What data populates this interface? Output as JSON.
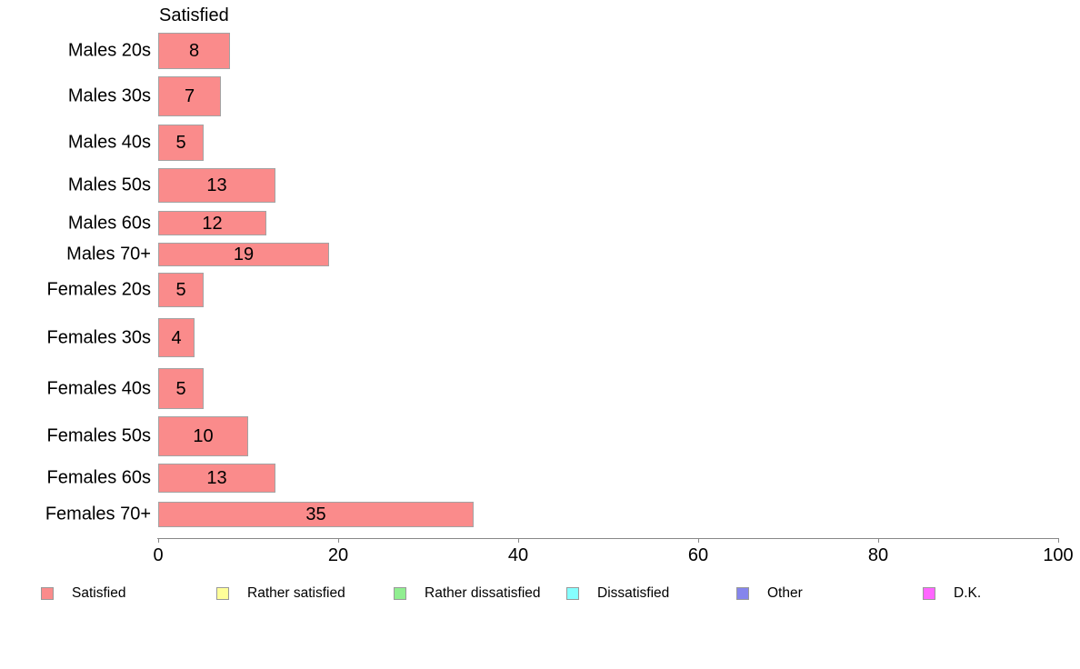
{
  "chart_data": {
    "type": "bar",
    "orientation": "horizontal",
    "title": "Satisfied",
    "categories": [
      "Males 20s",
      "Males 30s",
      "Males 40s",
      "Males 50s",
      "Males 60s",
      "Males 70+",
      "Females 20s",
      "Females 30s",
      "Females 40s",
      "Females 50s",
      "Females 60s",
      "Females 70+"
    ],
    "values": [
      8,
      7,
      5,
      13,
      12,
      19,
      5,
      4,
      5,
      10,
      13,
      35
    ],
    "xlabel": "",
    "ylabel": "",
    "xlim": [
      0,
      100
    ],
    "x_ticks": [
      0,
      20,
      40,
      60,
      80,
      100
    ],
    "grid": "off",
    "data_labels": "inside-center",
    "bar_color": "#FA8B8B",
    "bar_border_color": "#A3A3A3",
    "axis_color": "#888888",
    "text_color": "#000000",
    "legend_position": "bottom",
    "legend": [
      {
        "label": "Satisfied",
        "color": "#FA8B8B"
      },
      {
        "label": "Rather satisfied",
        "color": "#FFFF99"
      },
      {
        "label": "Rather dissatisfied",
        "color": "#90EE90"
      },
      {
        "label": "Dissatisfied",
        "color": "#85FFFF"
      },
      {
        "label": "Other",
        "color": "#8585EC"
      },
      {
        "label": "D.K.",
        "color": "#FF66FF"
      }
    ]
  }
}
